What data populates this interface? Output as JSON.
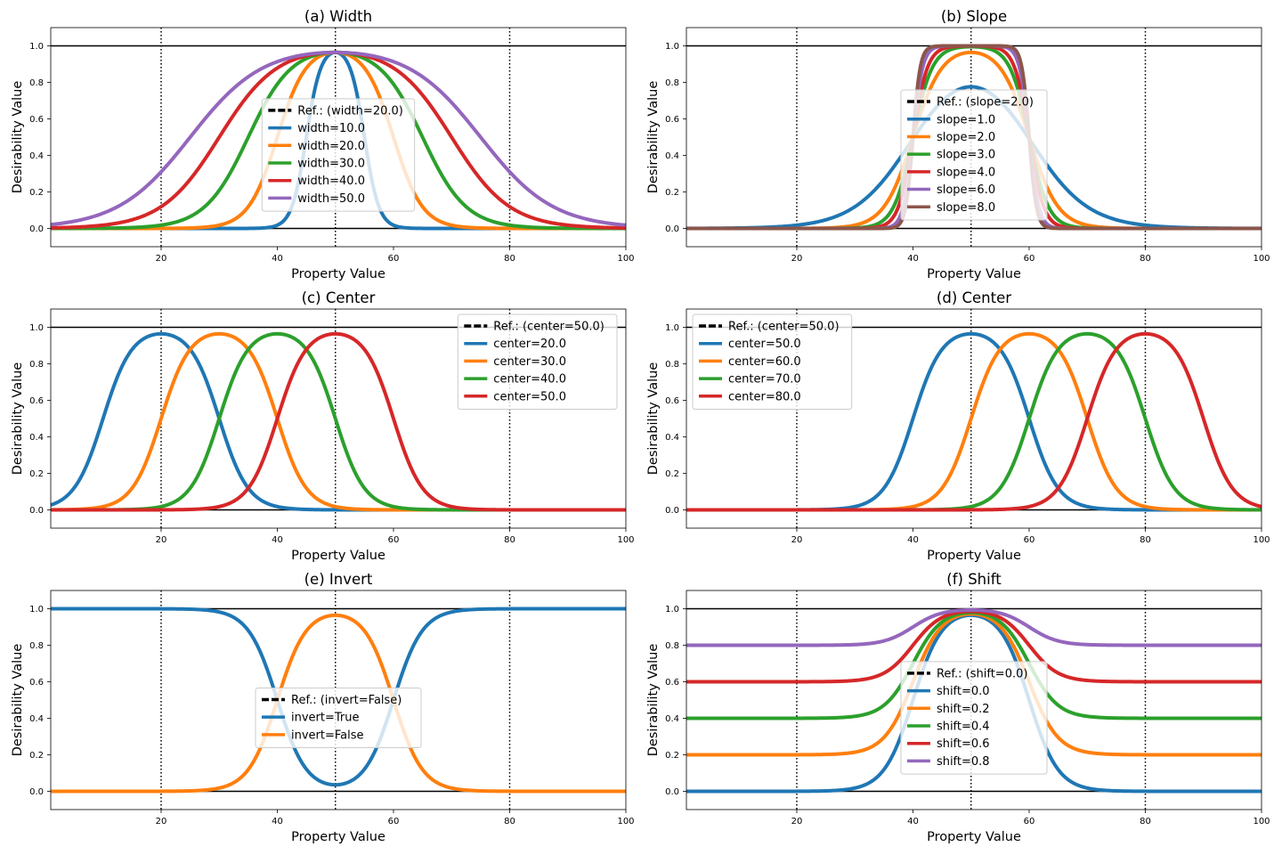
{
  "colors": {
    "blue": "#1f77b4",
    "orange": "#ff7f0e",
    "green": "#2ca02c",
    "red": "#d62728",
    "purple": "#9467bd",
    "brown": "#8c564b"
  },
  "chart_data": [
    {
      "type": "line",
      "title": "(a) Width",
      "xlabel": "Property Value",
      "ylabel": "Desirability Value",
      "xlim": [
        1,
        100
      ],
      "ylim": [
        -0.1,
        1.1
      ],
      "xticks": [
        "20",
        "40",
        "60",
        "80",
        "100"
      ],
      "yticks": [
        "0.0",
        "0.2",
        "0.4",
        "0.6",
        "0.8",
        "1.0"
      ],
      "vlines": [
        20,
        50,
        80
      ],
      "hlines": [
        0,
        1
      ],
      "legend": {
        "placement": "center",
        "ref_label": "Ref.: (width=20.0)"
      },
      "series": [
        {
          "name": "width=10.0",
          "color": "#1f77b4",
          "params": {
            "center": 50,
            "width": 10,
            "slope": 2,
            "invert": false,
            "shift": 0
          }
        },
        {
          "name": "width=20.0",
          "color": "#ff7f0e",
          "params": {
            "center": 50,
            "width": 20,
            "slope": 2,
            "invert": false,
            "shift": 0
          }
        },
        {
          "name": "width=30.0",
          "color": "#2ca02c",
          "params": {
            "center": 50,
            "width": 30,
            "slope": 2,
            "invert": false,
            "shift": 0
          }
        },
        {
          "name": "width=40.0",
          "color": "#d62728",
          "params": {
            "center": 50,
            "width": 40,
            "slope": 2,
            "invert": false,
            "shift": 0
          }
        },
        {
          "name": "width=50.0",
          "color": "#9467bd",
          "params": {
            "center": 50,
            "width": 50,
            "slope": 2,
            "invert": false,
            "shift": 0
          }
        }
      ]
    },
    {
      "type": "line",
      "title": "(b) Slope",
      "xlabel": "Property Value",
      "ylabel": "Desirability Value",
      "xlim": [
        1,
        100
      ],
      "ylim": [
        -0.1,
        1.1
      ],
      "xticks": [
        "20",
        "40",
        "60",
        "80",
        "100"
      ],
      "yticks": [
        "0.0",
        "0.2",
        "0.4",
        "0.6",
        "0.8",
        "1.0"
      ],
      "vlines": [
        20,
        50,
        80
      ],
      "hlines": [
        0,
        1
      ],
      "legend": {
        "placement": "center",
        "ref_label": "Ref.: (slope=2.0)"
      },
      "series": [
        {
          "name": "slope=1.0",
          "color": "#1f77b4",
          "params": {
            "center": 50,
            "width": 20,
            "slope": 1,
            "invert": false,
            "shift": 0
          }
        },
        {
          "name": "slope=2.0",
          "color": "#ff7f0e",
          "params": {
            "center": 50,
            "width": 20,
            "slope": 2,
            "invert": false,
            "shift": 0
          }
        },
        {
          "name": "slope=3.0",
          "color": "#2ca02c",
          "params": {
            "center": 50,
            "width": 20,
            "slope": 3,
            "invert": false,
            "shift": 0
          }
        },
        {
          "name": "slope=4.0",
          "color": "#d62728",
          "params": {
            "center": 50,
            "width": 20,
            "slope": 4,
            "invert": false,
            "shift": 0
          }
        },
        {
          "name": "slope=6.0",
          "color": "#9467bd",
          "params": {
            "center": 50,
            "width": 20,
            "slope": 6,
            "invert": false,
            "shift": 0
          }
        },
        {
          "name": "slope=8.0",
          "color": "#8c564b",
          "params": {
            "center": 50,
            "width": 20,
            "slope": 8,
            "invert": false,
            "shift": 0
          }
        }
      ]
    },
    {
      "type": "line",
      "title": "(c) Center",
      "xlabel": "Property Value",
      "ylabel": "Desirability Value",
      "xlim": [
        1,
        100
      ],
      "ylim": [
        -0.1,
        1.1
      ],
      "xticks": [
        "20",
        "40",
        "60",
        "80",
        "100"
      ],
      "yticks": [
        "0.0",
        "0.2",
        "0.4",
        "0.6",
        "0.8",
        "1.0"
      ],
      "vlines": [
        20,
        50,
        80
      ],
      "hlines": [
        0,
        1
      ],
      "legend": {
        "placement": "upper right",
        "ref_label": "Ref.: (center=50.0)"
      },
      "series": [
        {
          "name": "center=20.0",
          "color": "#1f77b4",
          "params": {
            "center": 20,
            "width": 20,
            "slope": 2,
            "invert": false,
            "shift": 0
          }
        },
        {
          "name": "center=30.0",
          "color": "#ff7f0e",
          "params": {
            "center": 30,
            "width": 20,
            "slope": 2,
            "invert": false,
            "shift": 0
          }
        },
        {
          "name": "center=40.0",
          "color": "#2ca02c",
          "params": {
            "center": 40,
            "width": 20,
            "slope": 2,
            "invert": false,
            "shift": 0
          }
        },
        {
          "name": "center=50.0",
          "color": "#d62728",
          "params": {
            "center": 50,
            "width": 20,
            "slope": 2,
            "invert": false,
            "shift": 0
          }
        }
      ]
    },
    {
      "type": "line",
      "title": "(d) Center",
      "xlabel": "Property Value",
      "ylabel": "Desirability Value",
      "xlim": [
        1,
        100
      ],
      "ylim": [
        -0.1,
        1.1
      ],
      "xticks": [
        "20",
        "40",
        "60",
        "80",
        "100"
      ],
      "yticks": [
        "0.0",
        "0.2",
        "0.4",
        "0.6",
        "0.8",
        "1.0"
      ],
      "vlines": [
        20,
        50,
        80
      ],
      "hlines": [
        0,
        1
      ],
      "legend": {
        "placement": "upper left",
        "ref_label": "Ref.: (center=50.0)"
      },
      "series": [
        {
          "name": "center=50.0",
          "color": "#1f77b4",
          "params": {
            "center": 50,
            "width": 20,
            "slope": 2,
            "invert": false,
            "shift": 0
          }
        },
        {
          "name": "center=60.0",
          "color": "#ff7f0e",
          "params": {
            "center": 60,
            "width": 20,
            "slope": 2,
            "invert": false,
            "shift": 0
          }
        },
        {
          "name": "center=70.0",
          "color": "#2ca02c",
          "params": {
            "center": 70,
            "width": 20,
            "slope": 2,
            "invert": false,
            "shift": 0
          }
        },
        {
          "name": "center=80.0",
          "color": "#d62728",
          "params": {
            "center": 80,
            "width": 20,
            "slope": 2,
            "invert": false,
            "shift": 0
          }
        }
      ]
    },
    {
      "type": "line",
      "title": "(e) Invert",
      "xlabel": "Property Value",
      "ylabel": "Desirability Value",
      "xlim": [
        1,
        100
      ],
      "ylim": [
        -0.1,
        1.1
      ],
      "xticks": [
        "20",
        "40",
        "60",
        "80",
        "100"
      ],
      "yticks": [
        "0.0",
        "0.2",
        "0.4",
        "0.6",
        "0.8",
        "1.0"
      ],
      "vlines": [
        20,
        50,
        80
      ],
      "hlines": [
        0,
        1
      ],
      "legend": {
        "placement": "center",
        "ref_label": "Ref.: (invert=False)"
      },
      "series": [
        {
          "name": "invert=True",
          "color": "#1f77b4",
          "params": {
            "center": 50,
            "width": 20,
            "slope": 2,
            "invert": true,
            "shift": 0
          }
        },
        {
          "name": "invert=False",
          "color": "#ff7f0e",
          "params": {
            "center": 50,
            "width": 20,
            "slope": 2,
            "invert": false,
            "shift": 0
          }
        }
      ]
    },
    {
      "type": "line",
      "title": "(f) Shift",
      "xlabel": "Property Value",
      "ylabel": "Desirability Value",
      "xlim": [
        1,
        100
      ],
      "ylim": [
        -0.1,
        1.1
      ],
      "xticks": [
        "20",
        "40",
        "60",
        "80",
        "100"
      ],
      "yticks": [
        "0.0",
        "0.2",
        "0.4",
        "0.6",
        "0.8",
        "1.0"
      ],
      "vlines": [
        20,
        50,
        80
      ],
      "hlines": [
        0,
        1
      ],
      "legend": {
        "placement": "center",
        "ref_label": "Ref.: (shift=0.0)"
      },
      "series": [
        {
          "name": "shift=0.0",
          "color": "#1f77b4",
          "params": {
            "center": 50,
            "width": 20,
            "slope": 2,
            "invert": false,
            "shift": 0.0
          }
        },
        {
          "name": "shift=0.2",
          "color": "#ff7f0e",
          "params": {
            "center": 50,
            "width": 20,
            "slope": 2,
            "invert": false,
            "shift": 0.2
          }
        },
        {
          "name": "shift=0.4",
          "color": "#2ca02c",
          "params": {
            "center": 50,
            "width": 20,
            "slope": 2,
            "invert": false,
            "shift": 0.4
          }
        },
        {
          "name": "shift=0.6",
          "color": "#d62728",
          "params": {
            "center": 50,
            "width": 20,
            "slope": 2,
            "invert": false,
            "shift": 0.6
          }
        },
        {
          "name": "shift=0.8",
          "color": "#9467bd",
          "params": {
            "center": 50,
            "width": 20,
            "slope": 2,
            "invert": false,
            "shift": 0.8
          }
        }
      ]
    }
  ]
}
